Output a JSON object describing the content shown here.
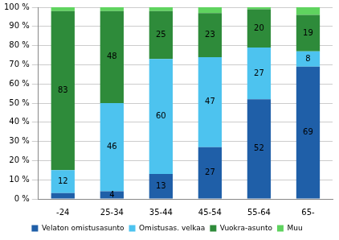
{
  "chart_data": {
    "type": "bar",
    "stacked": true,
    "data_labels": true,
    "grid": true,
    "legend": "bottom",
    "categories": [
      "-24",
      "25-34",
      "35-44",
      "45-54",
      "55-64",
      "65-"
    ],
    "series": [
      {
        "name": "Velaton omistusasunto",
        "color": "#1f5fa8",
        "values": [
          3,
          4,
          13,
          27,
          52,
          69
        ],
        "value_labels": [
          null,
          "4",
          "13",
          "27",
          "52",
          "69"
        ]
      },
      {
        "name": "Omistusas. velkaa",
        "color": "#4dc3ef",
        "values": [
          12,
          46,
          60,
          47,
          27,
          8
        ],
        "value_labels": [
          "12",
          "46",
          "60",
          "47",
          "27",
          "8"
        ]
      },
      {
        "name": "Vuokra-asunto",
        "color": "#2e8b3a",
        "values": [
          83,
          48,
          25,
          23,
          20,
          19
        ],
        "value_labels": [
          "83",
          "48",
          "25",
          "23",
          "20",
          "19"
        ]
      },
      {
        "name": "Muu",
        "color": "#5fd35f",
        "values": [
          2,
          2,
          2,
          3,
          1,
          4
        ],
        "value_labels": [
          null,
          null,
          null,
          null,
          null,
          null
        ]
      }
    ],
    "ylim": [
      0,
      100
    ],
    "yticks": [
      {
        "value": 0,
        "label": "0 %"
      },
      {
        "value": 10,
        "label": "10 %"
      },
      {
        "value": 20,
        "label": "20 %"
      },
      {
        "value": 30,
        "label": "30 %"
      },
      {
        "value": 40,
        "label": "40 %"
      },
      {
        "value": 50,
        "label": "50 %"
      },
      {
        "value": 60,
        "label": "60 %"
      },
      {
        "value": 70,
        "label": "70 %"
      },
      {
        "value": 80,
        "label": "80 %"
      },
      {
        "value": 90,
        "label": "90 %"
      },
      {
        "value": 100,
        "label": "100 %"
      }
    ]
  }
}
